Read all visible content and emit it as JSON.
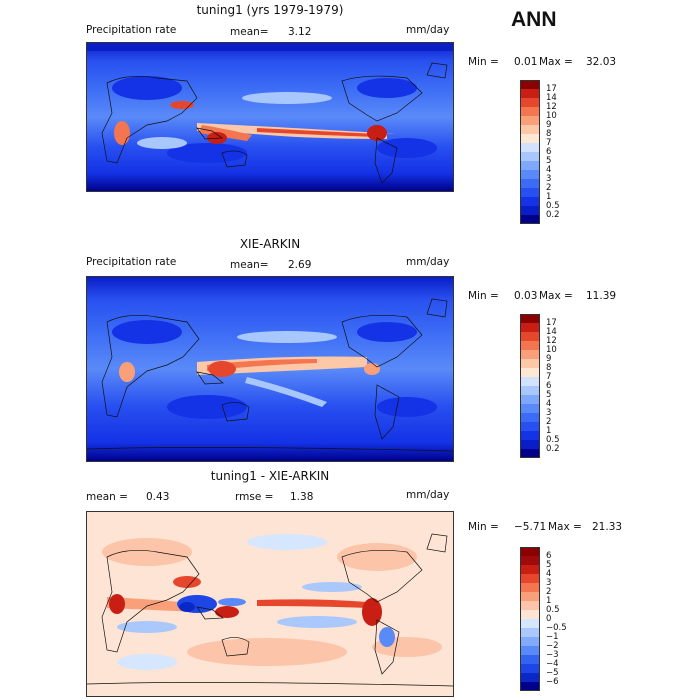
{
  "season": "ANN",
  "panels": [
    {
      "title": "tuning1 (yrs 1979-1979)",
      "variable": "Precipitation rate",
      "stat_label": "mean=",
      "stat_value": "3.12",
      "units": "mm/day",
      "min_label": "Min =",
      "min_value": "0.01",
      "max_label": "Max =",
      "max_value": "32.03",
      "colorbar": {
        "levels": [
          "0.2",
          "0.5",
          "1",
          "2",
          "3",
          "4",
          "5",
          "6",
          "7",
          "8",
          "9",
          "10",
          "12",
          "14",
          "17"
        ],
        "colors": [
          "#00008b",
          "#0a1ec8",
          "#1432e6",
          "#2850f0",
          "#3c6cf5",
          "#5a8af8",
          "#7ea8fb",
          "#a8c8fd",
          "#d2e2fe",
          "#fde8d4",
          "#fcc8a8",
          "#f9a07a",
          "#f37650",
          "#e6462c",
          "#c81e14",
          "#8b0000"
        ]
      }
    },
    {
      "title": "XIE-ARKIN",
      "variable": "Precipitation rate",
      "stat_label": "mean=",
      "stat_value": "2.69",
      "units": "mm/day",
      "min_label": "Min =",
      "min_value": "0.03",
      "max_label": "Max =",
      "max_value": "11.39",
      "colorbar": {
        "levels": [
          "0.2",
          "0.5",
          "1",
          "2",
          "3",
          "4",
          "5",
          "6",
          "7",
          "8",
          "9",
          "10",
          "12",
          "14",
          "17"
        ],
        "colors": [
          "#00008b",
          "#0a1ec8",
          "#1432e6",
          "#2850f0",
          "#3c6cf5",
          "#5a8af8",
          "#7ea8fb",
          "#a8c8fd",
          "#d2e2fe",
          "#fde8d4",
          "#fcc8a8",
          "#f9a07a",
          "#f37650",
          "#e6462c",
          "#c81e14",
          "#8b0000"
        ]
      }
    },
    {
      "title": "tuning1 - XIE-ARKIN",
      "stat_label": "mean =",
      "stat_value": "0.43",
      "rmse_label": "rmse =",
      "rmse_value": "1.38",
      "units": "mm/day",
      "min_label": "Min =",
      "min_value": "−5.71",
      "max_label": "Max =",
      "max_value": "21.33",
      "colorbar": {
        "levels": [
          "−6",
          "−5",
          "−4",
          "−3",
          "−2",
          "−1",
          "−0.5",
          "0",
          "0.5",
          "1",
          "2",
          "3",
          "4",
          "5",
          "6"
        ],
        "colors": [
          "#00008b",
          "#0a28c8",
          "#1e46e6",
          "#3264f0",
          "#5a8af8",
          "#82aafa",
          "#aac8fc",
          "#d6e6fe",
          "#fde4d4",
          "#fcc4a8",
          "#f9a07a",
          "#f37650",
          "#e6462c",
          "#c81e14",
          "#a00a0a",
          "#8b0000"
        ]
      }
    }
  ]
}
